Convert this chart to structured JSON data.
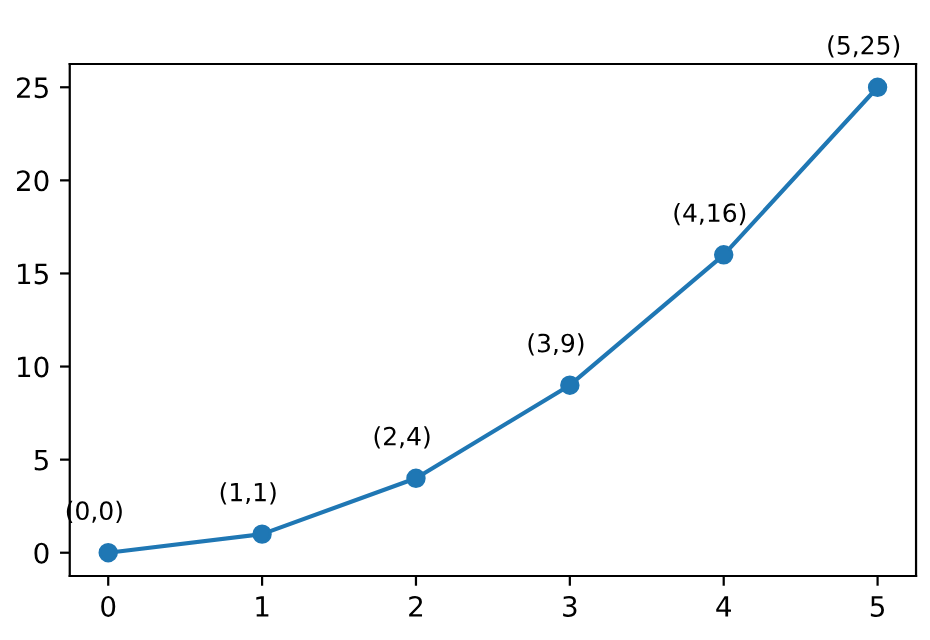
{
  "chart_data": {
    "type": "line",
    "x": [
      0,
      1,
      2,
      3,
      4,
      5
    ],
    "series": [
      {
        "color": "#1f77b4",
        "values": [
          0,
          1,
          4,
          9,
          16,
          25
        ]
      }
    ],
    "marker": "circle",
    "line_style": "solid",
    "grid": false,
    "legend": false,
    "xlim": [
      -0.25,
      5.25
    ],
    "ylim": [
      -1.25,
      26.25
    ],
    "xticks": [
      0,
      1,
      2,
      3,
      4,
      5
    ],
    "yticks": [
      0,
      5,
      10,
      15,
      20,
      25
    ],
    "annotations": [
      {
        "text": "(0,0)",
        "x": 0,
        "y": 0
      },
      {
        "text": "(1,1)",
        "x": 1,
        "y": 1
      },
      {
        "text": "(2,4)",
        "x": 2,
        "y": 4
      },
      {
        "text": "(3,9)",
        "x": 3,
        "y": 9
      },
      {
        "text": "(4,16)",
        "x": 4,
        "y": 16
      },
      {
        "text": "(5,25)",
        "x": 5,
        "y": 25
      }
    ]
  }
}
